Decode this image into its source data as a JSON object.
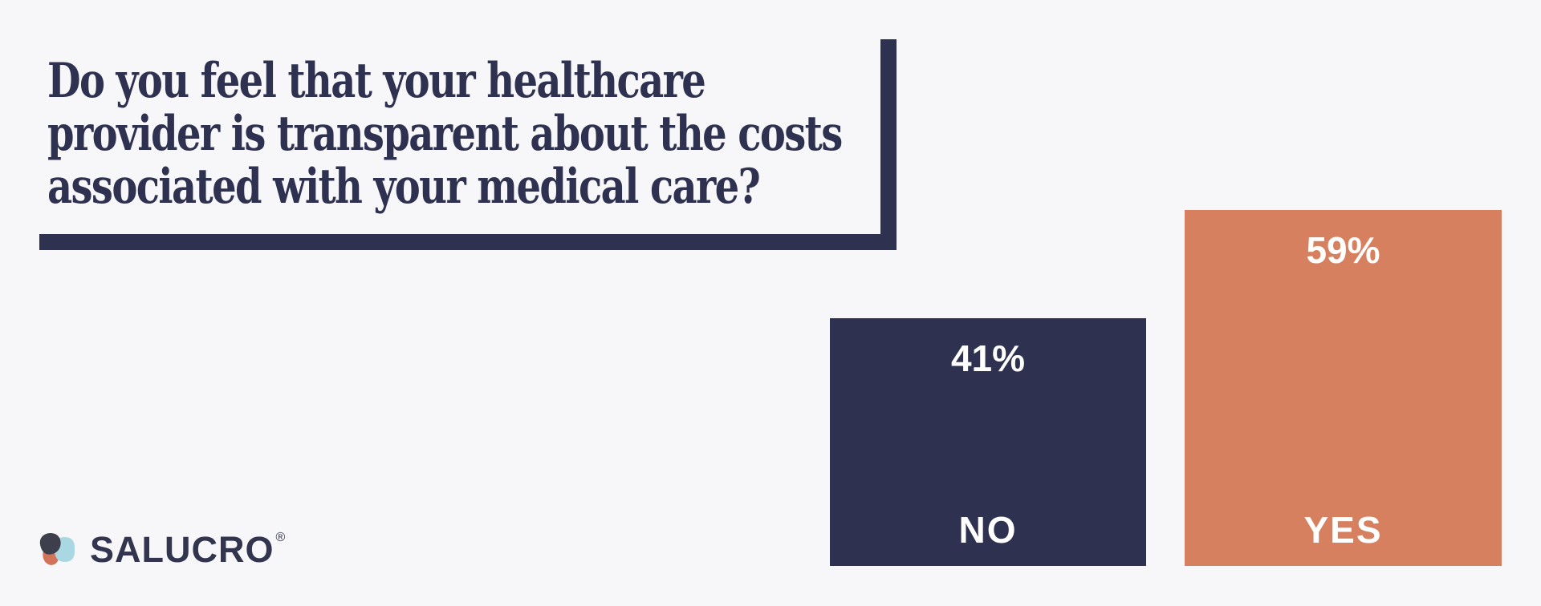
{
  "colors": {
    "background": "#f7f7f9",
    "navy": "#2f3150",
    "orange": "#d6805f",
    "white": "#ffffff"
  },
  "title": {
    "text": "Do you feel that your healthcare provider is transparent about the costs associated with your medical care?",
    "lines": [
      "Do you feel that your healthcare",
      "provider is transparent about the costs",
      "associated with your medical care?"
    ]
  },
  "chart_data": {
    "type": "bar",
    "title": "Do you feel that your healthcare provider is transparent about the costs associated with your medical care?",
    "categories": [
      "NO",
      "YES"
    ],
    "values": [
      41,
      59
    ],
    "value_labels": [
      "41%",
      "59%"
    ],
    "bar_colors": [
      "#2f3150",
      "#d6805f"
    ],
    "value_label_position": "inside-top",
    "category_label_position": "inside-bottom",
    "label_color": "#ffffff",
    "xlabel": "",
    "ylabel": "",
    "ylim": [
      0,
      59
    ],
    "grid": false,
    "legend": false
  },
  "logo": {
    "text": "SALUCRO",
    "registered_mark": "®",
    "colors": {
      "dark": "#3d3f4c",
      "blue": "#a9d8e2",
      "orange": "#d2745a",
      "text": "#33354e"
    }
  }
}
